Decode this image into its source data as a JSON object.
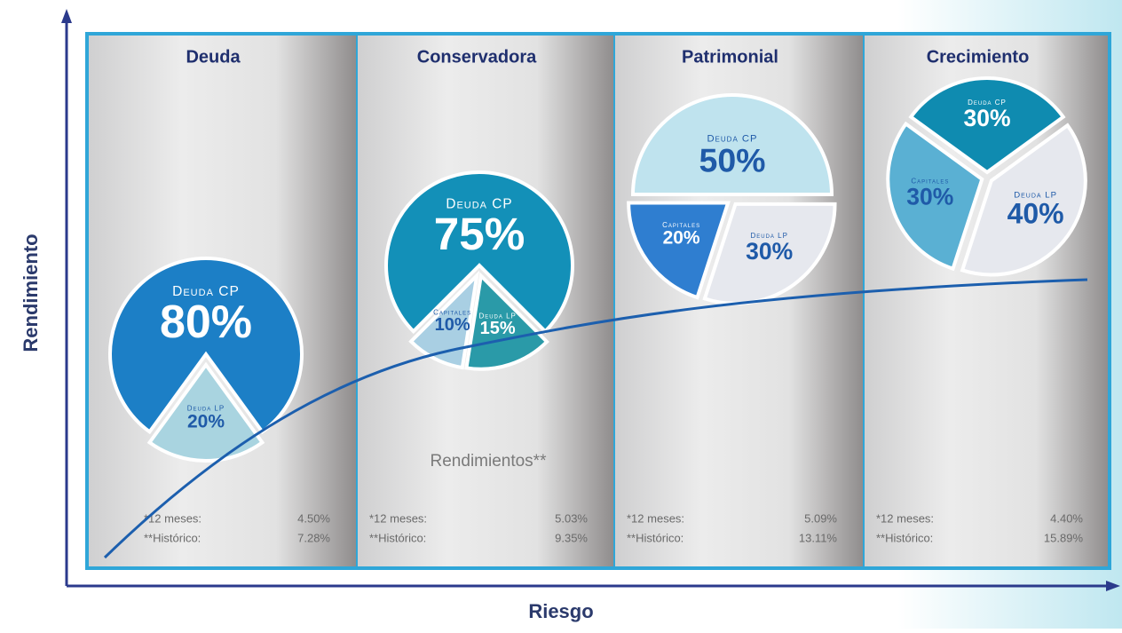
{
  "y_label": "Rendimiento",
  "x_label": "Riesgo",
  "note": "Rendimientos**",
  "chart_data": [
    {
      "type": "pie",
      "title": "Deuda",
      "categories": [
        "Deuda CP",
        "Deuda LP"
      ],
      "values": [
        80,
        20
      ],
      "value_labels": [
        "80%",
        "20%"
      ],
      "colors": [
        "#1c7fc6",
        "#a9d4e0"
      ],
      "stats": [
        {
          "label": "*12 meses:",
          "value": "4.50%"
        },
        {
          "label": "**Histórico:",
          "value": "7.28%"
        }
      ]
    },
    {
      "type": "pie",
      "title": "Conservadora",
      "categories": [
        "Deuda CP",
        "Deuda LP",
        "Capitales"
      ],
      "values": [
        75,
        15,
        10
      ],
      "value_labels": [
        "75%",
        "15%",
        "10%"
      ],
      "colors": [
        "#1390b8",
        "#2a9aa8",
        "#a9cfe3"
      ],
      "stats": [
        {
          "label": "*12 meses:",
          "value": "5.03%"
        },
        {
          "label": "**Histórico:",
          "value": "9.35%"
        }
      ]
    },
    {
      "type": "pie",
      "title": "Patrimonial",
      "categories": [
        "Deuda CP",
        "Deuda LP",
        "Capitales"
      ],
      "values": [
        50,
        30,
        20
      ],
      "value_labels": [
        "50%",
        "30%",
        "20%"
      ],
      "colors": [
        "#bfe3ee",
        "#e6e8ee",
        "#2f7ed0"
      ],
      "stats": [
        {
          "label": "*12 meses:",
          "value": "5.09%"
        },
        {
          "label": "**Histórico:",
          "value": "13.11%"
        }
      ]
    },
    {
      "type": "pie",
      "title": "Crecimiento",
      "categories": [
        "Deuda CP",
        "Deuda LP",
        "Capitales"
      ],
      "values": [
        30,
        40,
        30
      ],
      "value_labels": [
        "30%",
        "40%",
        "30%"
      ],
      "colors": [
        "#0f8bb0",
        "#e6e8ee",
        "#5ab0d3"
      ],
      "stats": [
        {
          "label": "*12 meses:",
          "value": "4.40%"
        },
        {
          "label": "**Histórico:",
          "value": "15.89%"
        }
      ]
    }
  ]
}
